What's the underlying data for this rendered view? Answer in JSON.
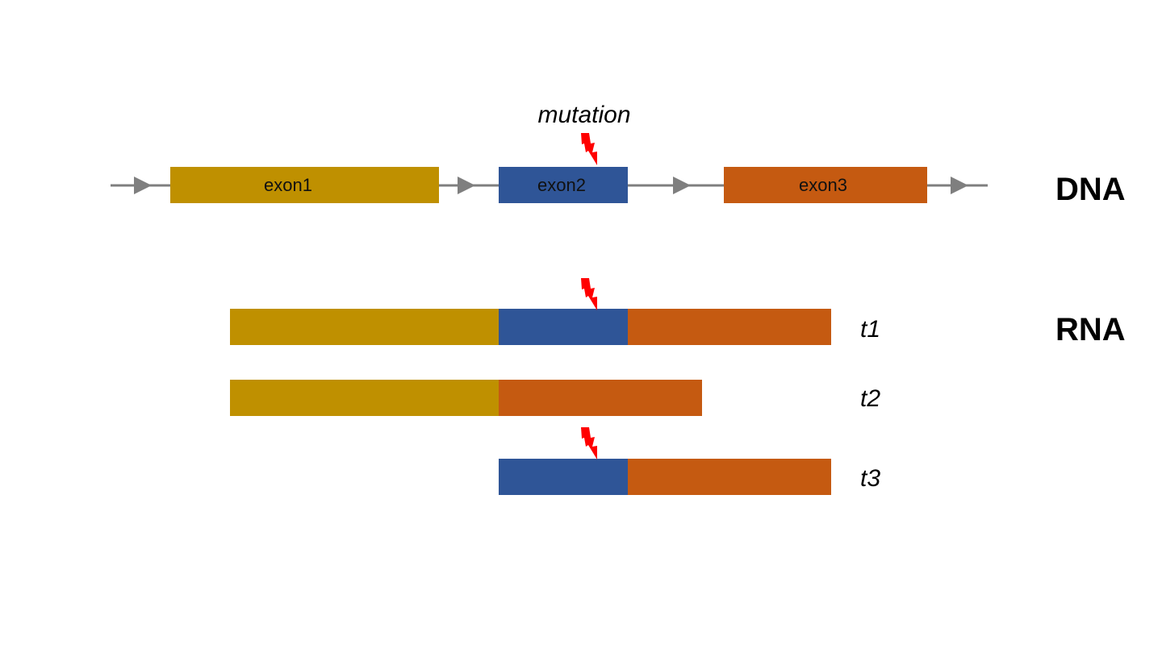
{
  "colors": {
    "exon1": "#BF9000",
    "exon2": "#2F5597",
    "exon3": "#C55A11",
    "intron": "#7F7F7F",
    "mutation": "#FF0000"
  },
  "dna": {
    "section_label": "DNA",
    "mutation_label": "mutation",
    "exons": [
      {
        "id": "exon1",
        "label": "exon1"
      },
      {
        "id": "exon2",
        "label": "exon2"
      },
      {
        "id": "exon3",
        "label": "exon3"
      }
    ]
  },
  "rna": {
    "section_label": "RNA",
    "transcripts": [
      {
        "label": "t1",
        "exons": [
          "exon1",
          "exon2",
          "exon3"
        ],
        "has_mutation": true
      },
      {
        "label": "t2",
        "exons": [
          "exon1",
          "exon3"
        ],
        "has_mutation": false
      },
      {
        "label": "t3",
        "exons": [
          "exon2",
          "exon3"
        ],
        "has_mutation": true
      }
    ]
  },
  "icons": {
    "mutation": "lightning-bolt-icon",
    "intron_arrow": "arrow-right-icon"
  }
}
